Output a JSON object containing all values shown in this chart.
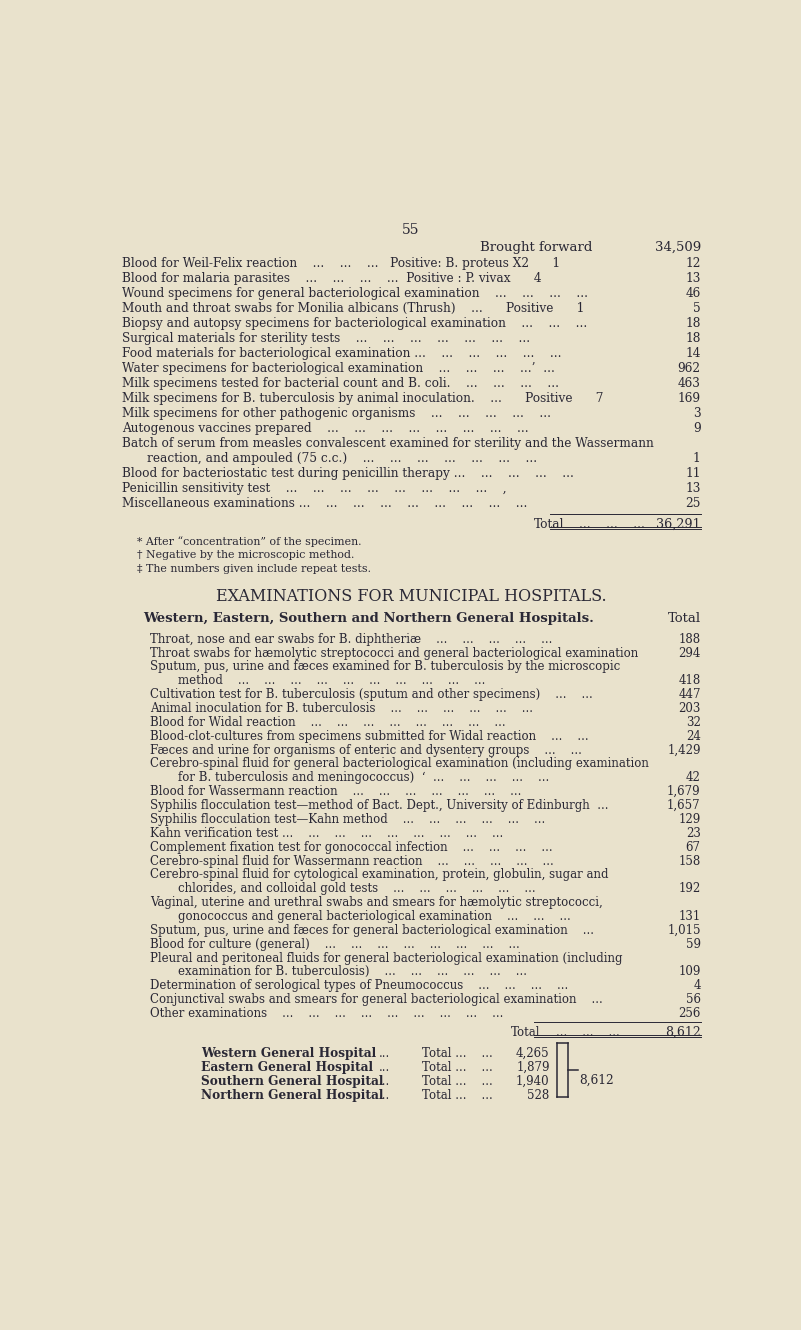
{
  "page_number": "55",
  "background_color": "#e9e2cc",
  "text_color": "#2a2835",
  "brought_forward_label": "Brought forward",
  "brought_forward_value": "34,509",
  "total1_label": "Total",
  "total1_value": "36,291",
  "footnotes": [
    "* After “concentration” of the specimen.",
    "† Negative by the microscopic method.",
    "‡ The numbers given include repeat tests."
  ],
  "section2_title": "EXAMINATIONS FOR MUNICIPAL HOSPITALS.",
  "section2_subtitle": "Western, Eastern, Southern and Northern General Hospitals.",
  "section2_subtitle_right": "Total",
  "total2_label": "Total",
  "total2_value": "8,612",
  "hospitals": [
    {
      "name": "Western General Hospital",
      "value": "4,265"
    },
    {
      "name": "Eastern General Hospital",
      "value": "1,879"
    },
    {
      "name": "Southern General Hospital",
      "value": "1,940"
    },
    {
      "name": "Northern General Hospital",
      "value": "528"
    }
  ],
  "hospitals_total": "8,612"
}
